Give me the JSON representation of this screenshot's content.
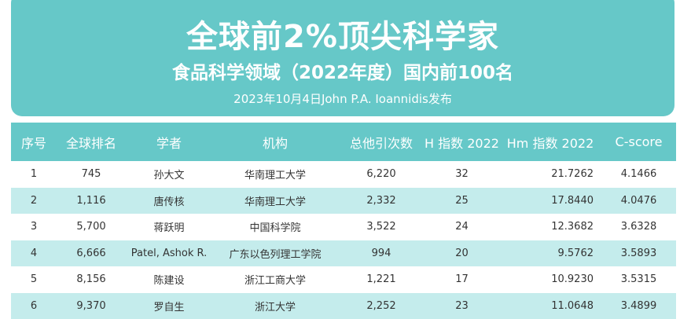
{
  "banner": {
    "title": "全球前2%顶尖科学家",
    "subtitle": "食品科学领域（2022年度）国内前100名",
    "source": "2023年10月4日John P.A. Ioannidis发布"
  },
  "colors": {
    "header": "#66c8c8",
    "alt_row": "#c4ecec"
  },
  "table": {
    "headers": [
      "序号",
      "全球排名",
      "学者",
      "机构",
      "总他引次数",
      "H 指数 2022",
      "Hm 指数 2022",
      "C-score"
    ],
    "rows": [
      [
        "1",
        "745",
        "孙大文",
        "华南理工大学",
        "6,220",
        "32",
        "21.7262",
        "4.1466"
      ],
      [
        "2",
        "1,116",
        "唐传核",
        "华南理工大学",
        "2,332",
        "25",
        "17.8440",
        "4.0476"
      ],
      [
        "3",
        "5,700",
        "蒋跃明",
        "中国科学院",
        "3,522",
        "24",
        "12.3682",
        "3.6328"
      ],
      [
        "4",
        "6,666",
        "Patel, Ashok R.",
        "广东以色列理工学院",
        "994",
        "20",
        "9.5762",
        "3.5893"
      ],
      [
        "5",
        "8,156",
        "陈建设",
        "浙江工商大学",
        "1,221",
        "17",
        "10.9230",
        "3.5315"
      ],
      [
        "6",
        "9,370",
        "罗自生",
        "浙江大学",
        "2,252",
        "23",
        "11.0648",
        "3.4899"
      ]
    ]
  }
}
